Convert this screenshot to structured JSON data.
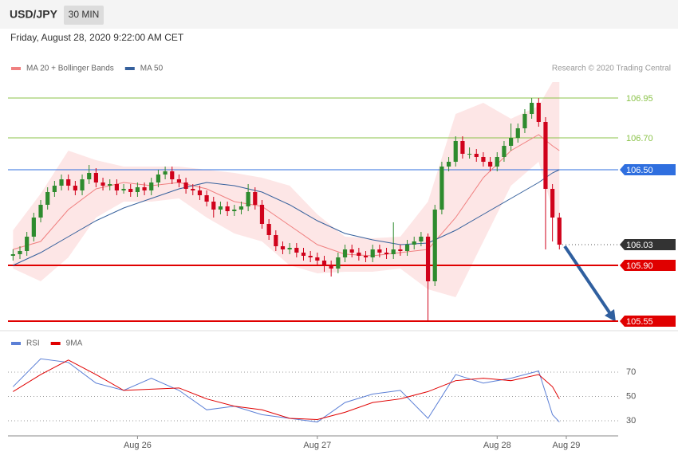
{
  "chart_data": [
    {
      "type": "candlestick",
      "title": "USD/JPY",
      "interval": "30 MIN",
      "subtitle": "Friday, August 28, 2020 9:22:00 AM CET",
      "source": "Research © 2020 Trading Central",
      "categories": [
        null,
        null,
        null,
        null,
        null,
        null,
        null,
        null,
        null,
        null,
        null,
        null,
        null,
        null,
        null,
        null,
        null,
        null,
        "Aug 26",
        null,
        null,
        null,
        null,
        null,
        null,
        null,
        null,
        null,
        null,
        null,
        null,
        null,
        null,
        null,
        null,
        null,
        null,
        null,
        null,
        null,
        null,
        null,
        null,
        null,
        "Aug 27",
        null,
        null,
        null,
        null,
        null,
        null,
        null,
        null,
        null,
        null,
        null,
        null,
        null,
        null,
        null,
        null,
        null,
        null,
        null,
        null,
        null,
        null,
        null,
        null,
        null,
        "Aug 28",
        null,
        null,
        null,
        null,
        null,
        null,
        null,
        null,
        null,
        "Aug 29",
        null,
        null,
        null,
        null,
        null,
        null,
        null
      ],
      "ohlc": [
        [
          105.96,
          106.0,
          105.93,
          105.97
        ],
        [
          105.97,
          106.02,
          105.94,
          105.99
        ],
        [
          105.99,
          106.11,
          105.96,
          106.08
        ],
        [
          106.08,
          106.23,
          106.05,
          106.2
        ],
        [
          106.2,
          106.31,
          106.17,
          106.28
        ],
        [
          106.28,
          106.39,
          106.25,
          106.36
        ],
        [
          106.36,
          106.43,
          106.33,
          106.4
        ],
        [
          106.4,
          106.47,
          106.37,
          106.44
        ],
        [
          106.44,
          106.47,
          106.37,
          106.4
        ],
        [
          106.4,
          106.43,
          106.34,
          106.37
        ],
        [
          106.37,
          106.47,
          106.34,
          106.44
        ],
        [
          106.44,
          106.53,
          106.41,
          106.48
        ],
        [
          106.48,
          106.51,
          106.39,
          106.42
        ],
        [
          106.42,
          106.45,
          106.37,
          106.4
        ],
        [
          106.4,
          106.44,
          106.37,
          106.41
        ],
        [
          106.41,
          106.44,
          106.34,
          106.37
        ],
        [
          106.37,
          106.41,
          106.35,
          106.38
        ],
        [
          106.38,
          106.41,
          106.33,
          106.36
        ],
        [
          106.36,
          106.42,
          106.33,
          106.39
        ],
        [
          106.39,
          106.42,
          106.34,
          106.37
        ],
        [
          106.37,
          106.45,
          106.34,
          106.42
        ],
        [
          106.42,
          106.5,
          106.39,
          106.47
        ],
        [
          106.47,
          106.52,
          106.44,
          106.49
        ],
        [
          106.49,
          106.52,
          106.41,
          106.44
        ],
        [
          106.44,
          106.47,
          106.39,
          106.42
        ],
        [
          106.42,
          106.45,
          106.35,
          106.38
        ],
        [
          106.38,
          106.41,
          106.34,
          106.37
        ],
        [
          106.37,
          106.4,
          106.31,
          106.34
        ],
        [
          106.34,
          106.37,
          106.27,
          106.3
        ],
        [
          106.3,
          106.33,
          106.2,
          106.25
        ],
        [
          106.25,
          106.3,
          106.22,
          106.27
        ],
        [
          106.27,
          106.3,
          106.21,
          106.24
        ],
        [
          106.24,
          106.28,
          106.21,
          106.25
        ],
        [
          106.25,
          106.3,
          106.22,
          106.27
        ],
        [
          106.27,
          106.41,
          106.24,
          106.36
        ],
        [
          106.36,
          106.39,
          106.25,
          106.28
        ],
        [
          106.28,
          106.31,
          106.13,
          106.16
        ],
        [
          106.16,
          106.19,
          106.06,
          106.09
        ],
        [
          106.09,
          106.12,
          105.99,
          106.02
        ],
        [
          106.02,
          106.05,
          105.97,
          106.0
        ],
        [
          106.0,
          106.04,
          105.97,
          106.01
        ],
        [
          106.01,
          106.04,
          105.95,
          105.98
        ],
        [
          105.98,
          106.01,
          105.93,
          105.96
        ],
        [
          105.96,
          105.99,
          105.92,
          105.95
        ],
        [
          105.95,
          105.98,
          105.9,
          105.93
        ],
        [
          105.93,
          105.96,
          105.86,
          105.9
        ],
        [
          105.9,
          105.93,
          105.83,
          105.88
        ],
        [
          105.88,
          105.98,
          105.85,
          105.95
        ],
        [
          105.95,
          106.03,
          105.92,
          106.0
        ],
        [
          106.0,
          106.03,
          105.95,
          105.98
        ],
        [
          105.98,
          106.01,
          105.93,
          105.96
        ],
        [
          105.96,
          105.99,
          105.92,
          105.95
        ],
        [
          105.95,
          106.03,
          105.92,
          106.0
        ],
        [
          106.0,
          106.03,
          105.95,
          105.98
        ],
        [
          105.98,
          106.01,
          105.94,
          105.97
        ],
        [
          105.97,
          106.17,
          105.94,
          106.0
        ],
        [
          106.0,
          106.03,
          105.96,
          105.99
        ],
        [
          105.99,
          106.06,
          105.96,
          106.03
        ],
        [
          106.03,
          106.08,
          106.0,
          106.05
        ],
        [
          106.05,
          106.11,
          106.02,
          106.08
        ],
        [
          106.08,
          106.1,
          105.55,
          105.8
        ],
        [
          105.8,
          106.28,
          105.77,
          106.25
        ],
        [
          106.25,
          106.55,
          106.22,
          106.52
        ],
        [
          106.52,
          106.58,
          106.49,
          106.55
        ],
        [
          106.55,
          106.71,
          106.52,
          106.68
        ],
        [
          106.68,
          106.71,
          106.57,
          106.6
        ],
        [
          106.6,
          106.64,
          106.57,
          106.6
        ],
        [
          106.6,
          106.63,
          106.55,
          106.58
        ],
        [
          106.58,
          106.61,
          106.52,
          106.55
        ],
        [
          106.55,
          106.58,
          106.49,
          106.52
        ],
        [
          106.52,
          106.61,
          106.49,
          106.58
        ],
        [
          106.58,
          106.68,
          106.55,
          106.65
        ],
        [
          106.65,
          106.79,
          106.62,
          106.7
        ],
        [
          106.7,
          106.79,
          106.67,
          106.76
        ],
        [
          106.76,
          106.88,
          106.73,
          106.85
        ],
        [
          106.85,
          106.95,
          106.82,
          106.92
        ],
        [
          106.92,
          106.95,
          106.77,
          106.8
        ],
        [
          106.8,
          106.83,
          106.0,
          106.38
        ],
        [
          106.38,
          106.41,
          106.05,
          106.2
        ],
        [
          106.2,
          106.23,
          106.0,
          106.03
        ],
        null,
        null,
        null,
        null,
        null,
        null,
        null,
        null
      ],
      "up_color": "#2e8b2e",
      "down_color": "#d0021b",
      "series": [
        {
          "name": "MA 20 + Bollinger Bands",
          "color": "#f08080",
          "band_color": "#fde0e0",
          "x": [
            0,
            4,
            8,
            12,
            16,
            20,
            24,
            28,
            32,
            36,
            40,
            44,
            48,
            52,
            56,
            60,
            64,
            68,
            72,
            76,
            78,
            79
          ],
          "values": [
            106.0,
            106.05,
            106.25,
            106.38,
            106.42,
            106.4,
            106.42,
            106.38,
            106.3,
            106.27,
            106.15,
            106.03,
            105.97,
            105.96,
            105.98,
            106.0,
            106.2,
            106.45,
            106.62,
            106.72,
            106.65,
            106.62
          ],
          "upper": [
            106.12,
            106.35,
            106.62,
            106.56,
            106.52,
            106.52,
            106.52,
            106.5,
            106.48,
            106.45,
            106.4,
            106.22,
            106.08,
            106.07,
            106.08,
            106.3,
            106.85,
            106.92,
            106.82,
            106.9,
            107.05,
            107.05
          ],
          "lower": [
            105.88,
            105.8,
            105.95,
            106.2,
            106.3,
            106.3,
            106.32,
            106.2,
            106.1,
            106.05,
            105.9,
            105.85,
            105.86,
            105.86,
            105.88,
            105.75,
            105.7,
            106.05,
            106.4,
            106.55,
            106.25,
            106.15
          ]
        },
        {
          "name": "MA 50",
          "color": "#35609c",
          "x": [
            0,
            4,
            8,
            12,
            16,
            20,
            24,
            28,
            32,
            36,
            40,
            44,
            48,
            52,
            56,
            60,
            64,
            68,
            72,
            76,
            78,
            79
          ],
          "values": [
            105.9,
            105.98,
            106.08,
            106.18,
            106.26,
            106.32,
            106.38,
            106.42,
            106.4,
            106.36,
            106.28,
            106.18,
            106.1,
            106.06,
            106.03,
            106.04,
            106.12,
            106.22,
            106.32,
            106.42,
            106.48,
            106.5
          ]
        }
      ],
      "levels": [
        {
          "value": 106.95,
          "label": "106.95",
          "color": "#8bc34a",
          "box": false,
          "dotted": false
        },
        {
          "value": 106.7,
          "label": "106.70",
          "color": "#8bc34a",
          "box": false,
          "dotted": false
        },
        {
          "value": 106.5,
          "label": "106.50",
          "color": "#2f6fdf",
          "box": true,
          "dotted": false
        },
        {
          "value": 106.03,
          "label": "106.03",
          "color": "#333333",
          "box": true,
          "dotted": true
        },
        {
          "value": 105.9,
          "label": "105.90",
          "color": "#e00000",
          "box": true,
          "dotted": false
        },
        {
          "value": 105.55,
          "label": "105.55",
          "color": "#e00000",
          "box": true,
          "dotted": false
        }
      ],
      "ylim": [
        105.5,
        107.1
      ]
    },
    {
      "type": "line",
      "series": [
        {
          "name": "RSI",
          "color": "#5b7fd6",
          "x": [
            0,
            4,
            8,
            12,
            16,
            20,
            24,
            28,
            32,
            36,
            40,
            44,
            48,
            52,
            56,
            60,
            64,
            68,
            72,
            76,
            78,
            79
          ],
          "values": [
            58,
            81,
            78,
            61,
            55,
            65,
            55,
            39,
            42,
            35,
            32,
            29,
            45,
            52,
            55,
            32,
            68,
            61,
            65,
            71,
            35,
            29
          ]
        },
        {
          "name": "9MA",
          "color": "#e00000",
          "x": [
            0,
            4,
            8,
            12,
            16,
            20,
            24,
            28,
            32,
            36,
            40,
            44,
            48,
            52,
            56,
            60,
            64,
            68,
            72,
            76,
            78,
            79
          ],
          "values": [
            54,
            68,
            80,
            68,
            55,
            56,
            57,
            48,
            42,
            39,
            32,
            31,
            37,
            45,
            48,
            54,
            63,
            65,
            63,
            68,
            58,
            48
          ]
        }
      ],
      "ylim": [
        19,
        90
      ],
      "yticks": [
        70,
        50,
        30
      ]
    }
  ]
}
